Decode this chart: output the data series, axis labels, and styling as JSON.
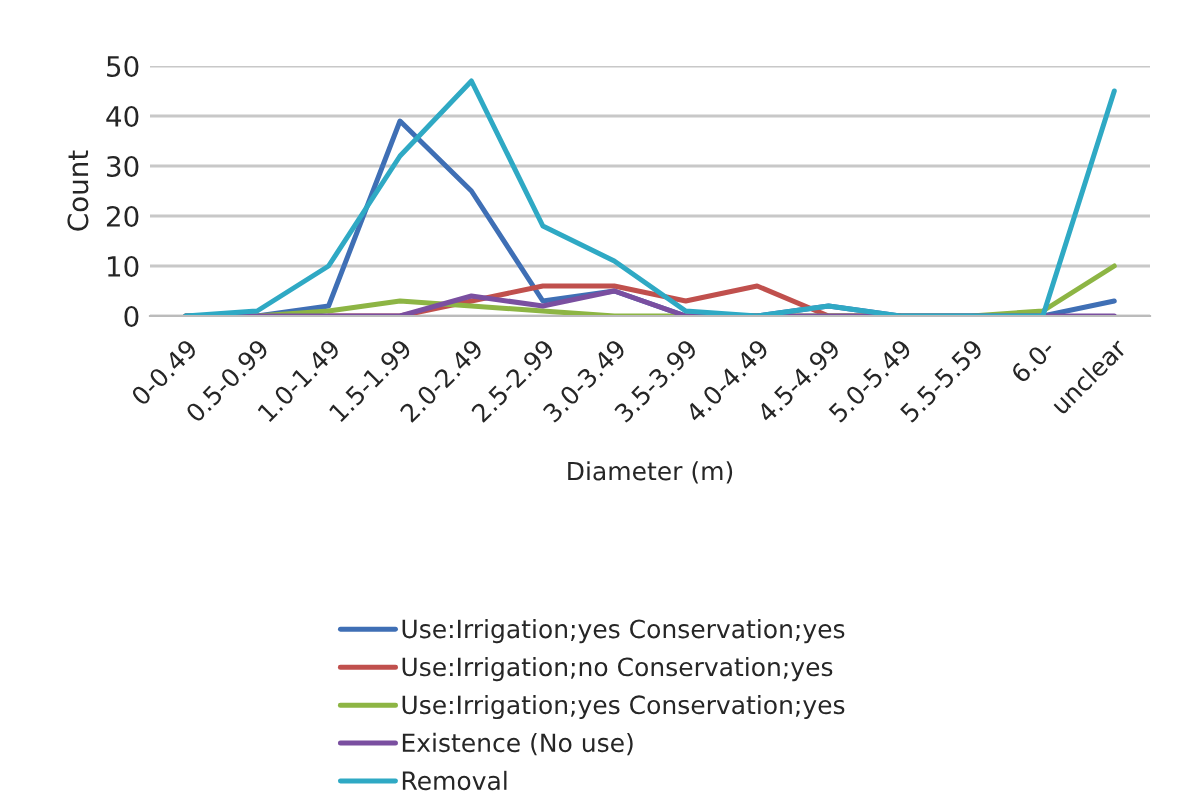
{
  "chart_data": {
    "type": "line",
    "xlabel": "Diameter (m)",
    "ylabel": "Count",
    "categories": [
      "0-0.49",
      "0.5-0.99",
      "1.0-1.49",
      "1.5-1.99",
      "2.0-2.49",
      "2.5-2.99",
      "3.0-3.49",
      "3.5-3.99",
      "4.0-4.49",
      "4.5-4.99",
      "5.0-5.49",
      "5.5-5.59",
      "6.0-",
      "unclear"
    ],
    "series": [
      {
        "name": "Use:Irrigation;yes Conservation;yes",
        "color": "#3f6fb5",
        "values": [
          0,
          0,
          2,
          39,
          25,
          3,
          5,
          0,
          0,
          2,
          0,
          0,
          0,
          3
        ]
      },
      {
        "name": "Use:Irrigation;no Conservation;yes",
        "color": "#c0504d",
        "values": [
          null,
          null,
          0,
          0,
          3,
          6,
          6,
          3,
          6,
          0,
          0,
          null,
          null,
          null
        ]
      },
      {
        "name": "Use:Irrigation;yes Conservation;yes",
        "color": "#8db544",
        "values": [
          0,
          0,
          1,
          3,
          2,
          1,
          0,
          0,
          0,
          0,
          0,
          0,
          1,
          10
        ]
      },
      {
        "name": "Existence (No use)",
        "color": "#7a4fa0",
        "values": [
          0,
          0,
          0,
          0,
          4,
          2,
          5,
          0,
          0,
          0,
          0,
          0,
          0,
          0
        ]
      },
      {
        "name": "Removal",
        "color": "#2fa9c4",
        "values": [
          0,
          1,
          10,
          32,
          47,
          18,
          11,
          1,
          0,
          2,
          0,
          0,
          0,
          45
        ]
      }
    ],
    "ylim": [
      0,
      50
    ],
    "yticks": [
      0,
      10,
      20,
      30,
      40,
      50
    ],
    "grid": "y",
    "legend": "bottom",
    "marker": "none",
    "line_style": "solid"
  }
}
